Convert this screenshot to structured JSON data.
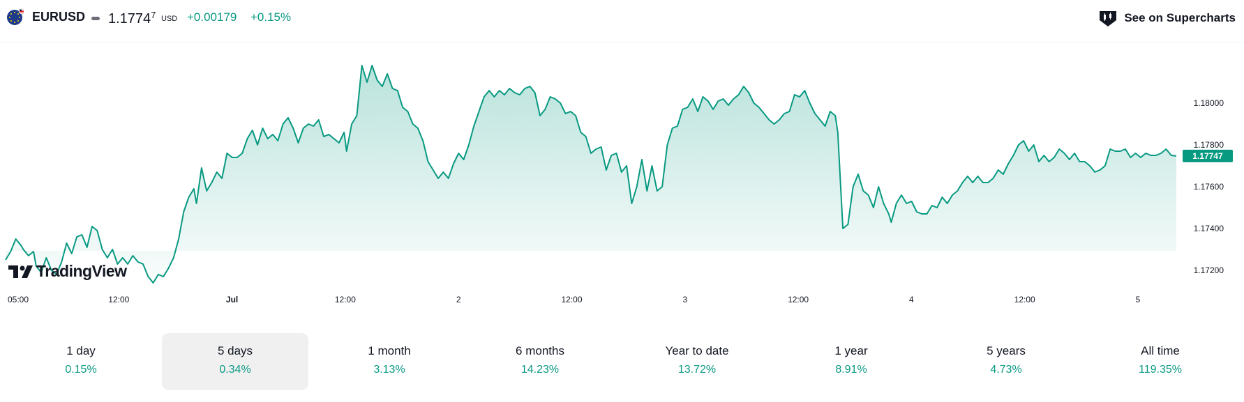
{
  "header": {
    "symbol": "EURUSD",
    "price_main": "1.1774",
    "price_sup": "7",
    "currency": "USD",
    "change_abs": "+0.00179",
    "change_pct": "+0.15%",
    "supercharts_label": "See on Supercharts"
  },
  "logo": {
    "text": "TradingView"
  },
  "colors": {
    "accent": "#089981",
    "text": "#131722",
    "axis_text": "#131722"
  },
  "chart_data": {
    "type": "area",
    "title": "EURUSD",
    "ylim": [
      1.1712,
      1.1826
    ],
    "yticks": [
      1.172,
      1.174,
      1.176,
      1.178,
      1.18
    ],
    "ytick_labels": [
      "1.17200",
      "1.17400",
      "1.17600",
      "1.17800",
      "1.18000"
    ],
    "xtick_labels": [
      "05:00",
      "12:00",
      "Jul",
      "12:00",
      "2",
      "12:00",
      "3",
      "12:00",
      "4",
      "12:00",
      "5"
    ],
    "last_value": 1.17747,
    "last_value_label": "1.17747",
    "grid": false,
    "series": [
      {
        "name": "EURUSD",
        "points": [
          [
            0,
            1.1725
          ],
          [
            2,
            1.1729
          ],
          [
            4,
            1.1735
          ],
          [
            6,
            1.1732
          ],
          [
            7,
            1.173
          ],
          [
            9,
            1.1727
          ],
          [
            11,
            1.1729
          ],
          [
            12,
            1.1722
          ],
          [
            14,
            1.1719
          ],
          [
            16,
            1.1726
          ],
          [
            18,
            1.172
          ],
          [
            20,
            1.1718
          ],
          [
            22,
            1.1724
          ],
          [
            24,
            1.1733
          ],
          [
            26,
            1.1728
          ],
          [
            28,
            1.1736
          ],
          [
            30,
            1.1737
          ],
          [
            32,
            1.1731
          ],
          [
            34,
            1.1741
          ],
          [
            36,
            1.1739
          ],
          [
            38,
            1.173
          ],
          [
            40,
            1.1726
          ],
          [
            42,
            1.173
          ],
          [
            44,
            1.1723
          ],
          [
            46,
            1.1726
          ],
          [
            48,
            1.1723
          ],
          [
            50,
            1.1727
          ],
          [
            52,
            1.1724
          ],
          [
            54,
            1.1723
          ],
          [
            56,
            1.1717
          ],
          [
            58,
            1.1714
          ],
          [
            60,
            1.1718
          ],
          [
            62,
            1.1717
          ],
          [
            64,
            1.1721
          ],
          [
            66,
            1.1726
          ],
          [
            68,
            1.1735
          ],
          [
            70,
            1.1748
          ],
          [
            72,
            1.1755
          ],
          [
            74,
            1.1759
          ],
          [
            75,
            1.1752
          ],
          [
            77,
            1.1769
          ],
          [
            79,
            1.1758
          ],
          [
            81,
            1.1762
          ],
          [
            83,
            1.1767
          ],
          [
            85,
            1.1764
          ],
          [
            87,
            1.1776
          ],
          [
            89,
            1.1774
          ],
          [
            91,
            1.1774
          ],
          [
            93,
            1.1776
          ],
          [
            95,
            1.1783
          ],
          [
            97,
            1.1787
          ],
          [
            99,
            1.178
          ],
          [
            101,
            1.1788
          ],
          [
            103,
            1.1783
          ],
          [
            105,
            1.1785
          ],
          [
            107,
            1.1782
          ],
          [
            109,
            1.179
          ],
          [
            111,
            1.1793
          ],
          [
            113,
            1.1788
          ],
          [
            115,
            1.1781
          ],
          [
            117,
            1.1788
          ],
          [
            119,
            1.179
          ],
          [
            121,
            1.1789
          ],
          [
            123,
            1.1792
          ],
          [
            125,
            1.1784
          ],
          [
            127,
            1.1785
          ],
          [
            129,
            1.1783
          ],
          [
            131,
            1.1781
          ],
          [
            133,
            1.1786
          ],
          [
            134,
            1.1777
          ],
          [
            136,
            1.179
          ],
          [
            138,
            1.1794
          ],
          [
            140,
            1.1818
          ],
          [
            142,
            1.181
          ],
          [
            144,
            1.1818
          ],
          [
            146,
            1.1811
          ],
          [
            148,
            1.1808
          ],
          [
            150,
            1.1814
          ],
          [
            152,
            1.1807
          ],
          [
            154,
            1.1806
          ],
          [
            156,
            1.1798
          ],
          [
            158,
            1.1796
          ],
          [
            160,
            1.179
          ],
          [
            162,
            1.1788
          ],
          [
            164,
            1.1782
          ],
          [
            166,
            1.1772
          ],
          [
            168,
            1.1768
          ],
          [
            170,
            1.1764
          ],
          [
            172,
            1.1767
          ],
          [
            174,
            1.1764
          ],
          [
            176,
            1.1771
          ],
          [
            178,
            1.1776
          ],
          [
            180,
            1.1773
          ],
          [
            182,
            1.178
          ],
          [
            184,
            1.1789
          ],
          [
            186,
            1.1796
          ],
          [
            188,
            1.1803
          ],
          [
            190,
            1.1806
          ],
          [
            192,
            1.1803
          ],
          [
            194,
            1.1806
          ],
          [
            196,
            1.1804
          ],
          [
            198,
            1.1807
          ],
          [
            200,
            1.1805
          ],
          [
            202,
            1.1804
          ],
          [
            204,
            1.1807
          ],
          [
            206,
            1.1808
          ],
          [
            208,
            1.1805
          ],
          [
            210,
            1.1794
          ],
          [
            212,
            1.1797
          ],
          [
            214,
            1.1803
          ],
          [
            216,
            1.1802
          ],
          [
            218,
            1.18
          ],
          [
            220,
            1.1795
          ],
          [
            222,
            1.1796
          ],
          [
            224,
            1.1794
          ],
          [
            226,
            1.1786
          ],
          [
            228,
            1.1784
          ],
          [
            230,
            1.1776
          ],
          [
            232,
            1.1778
          ],
          [
            234,
            1.1779
          ],
          [
            236,
            1.1768
          ],
          [
            238,
            1.1775
          ],
          [
            240,
            1.1776
          ],
          [
            242,
            1.1767
          ],
          [
            244,
            1.177
          ],
          [
            246,
            1.1752
          ],
          [
            248,
            1.176
          ],
          [
            250,
            1.1773
          ],
          [
            252,
            1.1758
          ],
          [
            254,
            1.177
          ],
          [
            256,
            1.1758
          ],
          [
            258,
            1.176
          ],
          [
            260,
            1.178
          ],
          [
            262,
            1.1788
          ],
          [
            264,
            1.1789
          ],
          [
            266,
            1.1797
          ],
          [
            268,
            1.1798
          ],
          [
            270,
            1.1802
          ],
          [
            272,
            1.1796
          ],
          [
            274,
            1.1803
          ],
          [
            276,
            1.1801
          ],
          [
            278,
            1.1797
          ],
          [
            280,
            1.1801
          ],
          [
            282,
            1.1802
          ],
          [
            284,
            1.1799
          ],
          [
            286,
            1.1802
          ],
          [
            288,
            1.1804
          ],
          [
            290,
            1.1808
          ],
          [
            292,
            1.1805
          ],
          [
            294,
            1.18
          ],
          [
            296,
            1.1798
          ],
          [
            298,
            1.1795
          ],
          [
            300,
            1.1792
          ],
          [
            302,
            1.179
          ],
          [
            304,
            1.1792
          ],
          [
            306,
            1.1795
          ],
          [
            308,
            1.1796
          ],
          [
            310,
            1.1804
          ],
          [
            312,
            1.1803
          ],
          [
            314,
            1.1806
          ],
          [
            316,
            1.18
          ],
          [
            318,
            1.1795
          ],
          [
            320,
            1.1792
          ],
          [
            322,
            1.1789
          ],
          [
            324,
            1.1796
          ],
          [
            326,
            1.1794
          ],
          [
            327,
            1.1786
          ],
          [
            329,
            1.174
          ],
          [
            331,
            1.1742
          ],
          [
            333,
            1.176
          ],
          [
            335,
            1.1766
          ],
          [
            337,
            1.1758
          ],
          [
            339,
            1.1756
          ],
          [
            341,
            1.175
          ],
          [
            343,
            1.176
          ],
          [
            345,
            1.1752
          ],
          [
            347,
            1.1747
          ],
          [
            348,
            1.1743
          ],
          [
            350,
            1.1752
          ],
          [
            352,
            1.1756
          ],
          [
            354,
            1.1752
          ],
          [
            356,
            1.1753
          ],
          [
            358,
            1.1748
          ],
          [
            360,
            1.1747
          ],
          [
            362,
            1.1747
          ],
          [
            364,
            1.1751
          ],
          [
            366,
            1.175
          ],
          [
            368,
            1.1755
          ],
          [
            370,
            1.1752
          ],
          [
            372,
            1.1756
          ],
          [
            374,
            1.1758
          ],
          [
            376,
            1.1762
          ],
          [
            378,
            1.1765
          ],
          [
            380,
            1.1762
          ],
          [
            382,
            1.1765
          ],
          [
            384,
            1.1762
          ],
          [
            386,
            1.1762
          ],
          [
            388,
            1.1764
          ],
          [
            390,
            1.1768
          ],
          [
            392,
            1.1766
          ],
          [
            394,
            1.1771
          ],
          [
            396,
            1.1775
          ],
          [
            398,
            1.178
          ],
          [
            400,
            1.1782
          ],
          [
            402,
            1.1777
          ],
          [
            404,
            1.178
          ],
          [
            406,
            1.1772
          ],
          [
            408,
            1.1775
          ],
          [
            410,
            1.1772
          ],
          [
            412,
            1.1774
          ],
          [
            414,
            1.1778
          ],
          [
            416,
            1.1776
          ],
          [
            418,
            1.1773
          ],
          [
            420,
            1.1776
          ],
          [
            422,
            1.1772
          ],
          [
            424,
            1.1772
          ],
          [
            426,
            1.177
          ],
          [
            428,
            1.1767
          ],
          [
            430,
            1.1768
          ],
          [
            432,
            1.177
          ],
          [
            434,
            1.1778
          ],
          [
            436,
            1.1777
          ],
          [
            438,
            1.1777
          ],
          [
            440,
            1.1778
          ],
          [
            442,
            1.1774
          ],
          [
            444,
            1.1776
          ],
          [
            446,
            1.1774
          ],
          [
            448,
            1.1776
          ],
          [
            450,
            1.1775
          ],
          [
            452,
            1.1775
          ],
          [
            454,
            1.1776
          ],
          [
            456,
            1.1778
          ],
          [
            458,
            1.1775
          ],
          [
            460,
            1.17747
          ]
        ]
      }
    ]
  },
  "ranges": [
    {
      "label": "1 day",
      "value": "0.15%",
      "active": false
    },
    {
      "label": "5 days",
      "value": "0.34%",
      "active": true
    },
    {
      "label": "1 month",
      "value": "3.13%",
      "active": false
    },
    {
      "label": "6 months",
      "value": "14.23%",
      "active": false
    },
    {
      "label": "Year to date",
      "value": "13.72%",
      "active": false
    },
    {
      "label": "1 year",
      "value": "8.91%",
      "active": false
    },
    {
      "label": "5 years",
      "value": "4.73%",
      "active": false
    },
    {
      "label": "All time",
      "value": "119.35%",
      "active": false
    }
  ]
}
